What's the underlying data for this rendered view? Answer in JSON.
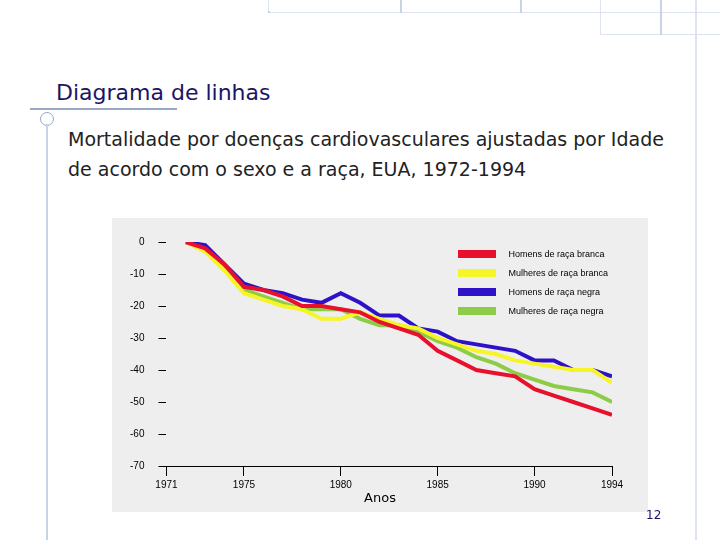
{
  "slide": {
    "heading": "Diagrama de linhas",
    "page_number": "12"
  },
  "chart_data": {
    "type": "line",
    "title": "Mortalidade por doenças cardiovasculares ajustadas por Idade de acordo com o sexo e a raça, EUA, 1972-1994",
    "x_label": "Anos",
    "x": [
      1972,
      1973,
      1974,
      1975,
      1976,
      1977,
      1978,
      1979,
      1980,
      1981,
      1982,
      1983,
      1984,
      1985,
      1986,
      1987,
      1988,
      1989,
      1990,
      1991,
      1992,
      1993,
      1994
    ],
    "series": [
      {
        "name": "Homens de raça branca",
        "color": "#e8112d",
        "values": [
          0,
          -2,
          -7,
          -14,
          -15,
          -17,
          -20,
          -20,
          -21,
          -22,
          -25,
          -27,
          -29,
          -34,
          -37,
          -40,
          -41,
          -42,
          -46,
          -48,
          -50,
          -52,
          -54
        ]
      },
      {
        "name": "Mulheres de raça branca",
        "color": "#f5f528",
        "values": [
          0,
          -3,
          -9,
          -16,
          -18,
          -20,
          -21,
          -24,
          -24,
          -22,
          -24,
          -26,
          -27,
          -30,
          -32,
          -34,
          -35,
          -37,
          -38,
          -39,
          -40,
          -40,
          -44
        ]
      },
      {
        "name": "Homens de raça negra",
        "color": "#2e12c8",
        "values": [
          0,
          -1,
          -7,
          -13,
          -15,
          -16,
          -18,
          -19,
          -16,
          -19,
          -23,
          -23,
          -27,
          -28,
          -31,
          -32,
          -33,
          -34,
          -37,
          -37,
          -40,
          -40,
          -42
        ]
      },
      {
        "name": "Mulheres de raça negra",
        "color": "#8ccc46",
        "values": [
          0,
          -2,
          -8,
          -15,
          -17,
          -19,
          -21,
          -21,
          -21,
          -24,
          -26,
          -26,
          -28,
          -31,
          -33,
          -36,
          -38,
          -41,
          -43,
          -45,
          -46,
          -47,
          -50
        ]
      }
    ],
    "xlim": [
      1971,
      1994
    ],
    "xticks": [
      1971,
      1975,
      1980,
      1985,
      1990,
      1994
    ],
    "ylim": [
      -70,
      0
    ],
    "yticks": [
      -70,
      -60,
      -50,
      -40,
      -30,
      -20,
      -10,
      0
    ],
    "grid": false,
    "legend": "upper right",
    "marker": "none",
    "line_style": "solid"
  }
}
